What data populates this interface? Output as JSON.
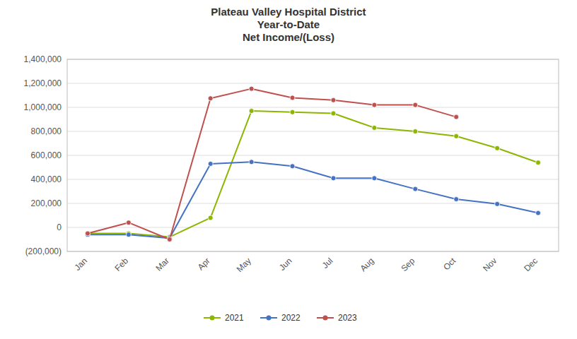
{
  "chart_data": {
    "type": "line",
    "title": "Plateau Valley Hospital District\nYear-to-Date\nNet Income/(Loss)",
    "categories": [
      "Jan",
      "Feb",
      "Mar",
      "Apr",
      "May",
      "Jun",
      "Jul",
      "Aug",
      "Sep",
      "Oct",
      "Nov",
      "Dec"
    ],
    "series": [
      {
        "name": "2021",
        "color": "#8db600",
        "values": [
          -50000,
          -50000,
          -80000,
          80000,
          970000,
          960000,
          950000,
          830000,
          800000,
          760000,
          660000,
          540000
        ]
      },
      {
        "name": "2022",
        "color": "#4472c4",
        "values": [
          -60000,
          -60000,
          -90000,
          530000,
          545000,
          510000,
          410000,
          410000,
          320000,
          235000,
          195000,
          120000
        ]
      },
      {
        "name": "2023",
        "color": "#c0504d",
        "values": [
          -50000,
          40000,
          -100000,
          1075000,
          1155000,
          1080000,
          1060000,
          1020000,
          1020000,
          920000,
          null,
          null
        ]
      }
    ],
    "ylim": [
      -200000,
      1400000
    ],
    "yticks": [
      {
        "value": -200000,
        "label": "(200,000)"
      },
      0,
      {
        "value": 200000,
        "label": "200,000"
      },
      {
        "value": 400000,
        "label": "400,000"
      },
      {
        "value": 600000,
        "label": "600,000"
      },
      {
        "value": 800000,
        "label": "800,000"
      },
      {
        "value": 1000000,
        "label": "1,000,000"
      },
      {
        "value": 1200000,
        "label": "1,200,000"
      },
      {
        "value": 1400000,
        "label": "1,400,000"
      }
    ],
    "grid": true,
    "legend": "bottom",
    "marker": "circle"
  }
}
